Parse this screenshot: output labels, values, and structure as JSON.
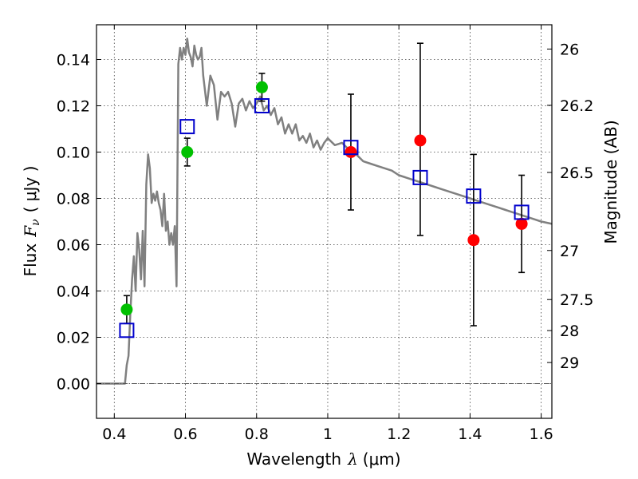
{
  "chart_data": {
    "type": "scatter",
    "xlabel": {
      "prefix": "Wavelength",
      "symbol": "λ",
      "unit": "(μm)"
    },
    "ylabel": {
      "prefix": "Flux",
      "symbol": "F",
      "subscript": "ν",
      "unit": "( μJy )"
    },
    "y2label": "Magnitude (AB)",
    "xlim": [
      0.35,
      1.63
    ],
    "ylim": [
      -0.015,
      0.155
    ],
    "grid": true,
    "x_ticks": [
      {
        "value": 0.4,
        "label": "0.4"
      },
      {
        "value": 0.6,
        "label": "0.6"
      },
      {
        "value": 0.8,
        "label": "0.8"
      },
      {
        "value": 1.0,
        "label": "1"
      },
      {
        "value": 1.2,
        "label": "1.2"
      },
      {
        "value": 1.4,
        "label": "1.4"
      },
      {
        "value": 1.6,
        "label": "1.6"
      }
    ],
    "y_ticks": [
      {
        "value": 0.0,
        "label": "0.00"
      },
      {
        "value": 0.02,
        "label": "0.02"
      },
      {
        "value": 0.04,
        "label": "0.04"
      },
      {
        "value": 0.06,
        "label": "0.06"
      },
      {
        "value": 0.08,
        "label": "0.08"
      },
      {
        "value": 0.1,
        "label": "0.10"
      },
      {
        "value": 0.12,
        "label": "0.12"
      },
      {
        "value": 0.14,
        "label": "0.14"
      }
    ],
    "y2_ticks": [
      {
        "flux": 0.1445,
        "label": "26"
      },
      {
        "flux": 0.1202,
        "label": "26.2"
      },
      {
        "flux": 0.0912,
        "label": "26.5"
      },
      {
        "flux": 0.0575,
        "label": "27"
      },
      {
        "flux": 0.0363,
        "label": "27.5"
      },
      {
        "flux": 0.0229,
        "label": "28"
      },
      {
        "flux": 0.0091,
        "label": "29"
      }
    ],
    "series": [
      {
        "kind": "line",
        "color": "#808080",
        "x": [
          0.35,
          0.42,
          0.43,
          0.435,
          0.44,
          0.445,
          0.45,
          0.455,
          0.46,
          0.465,
          0.47,
          0.475,
          0.48,
          0.485,
          0.49,
          0.495,
          0.5,
          0.505,
          0.51,
          0.515,
          0.52,
          0.525,
          0.53,
          0.535,
          0.54,
          0.545,
          0.55,
          0.555,
          0.56,
          0.565,
          0.57,
          0.575,
          0.58,
          0.585,
          0.59,
          0.595,
          0.6,
          0.605,
          0.61,
          0.615,
          0.62,
          0.625,
          0.63,
          0.635,
          0.64,
          0.645,
          0.65,
          0.66,
          0.67,
          0.68,
          0.69,
          0.7,
          0.71,
          0.72,
          0.73,
          0.74,
          0.75,
          0.76,
          0.77,
          0.78,
          0.79,
          0.8,
          0.81,
          0.82,
          0.83,
          0.84,
          0.85,
          0.86,
          0.87,
          0.88,
          0.89,
          0.9,
          0.91,
          0.92,
          0.93,
          0.94,
          0.95,
          0.96,
          0.97,
          0.98,
          0.99,
          1.0,
          1.02,
          1.04,
          1.06,
          1.08,
          1.1,
          1.12,
          1.14,
          1.16,
          1.18,
          1.2,
          1.22,
          1.24,
          1.26,
          1.28,
          1.3,
          1.32,
          1.34,
          1.36,
          1.38,
          1.4,
          1.42,
          1.44,
          1.46,
          1.48,
          1.5,
          1.52,
          1.54,
          1.56,
          1.58,
          1.6,
          1.63
        ],
        "y": [
          0.0,
          0.0,
          0.0,
          0.008,
          0.012,
          0.03,
          0.045,
          0.055,
          0.04,
          0.065,
          0.058,
          0.045,
          0.066,
          0.042,
          0.086,
          0.099,
          0.093,
          0.078,
          0.082,
          0.079,
          0.083,
          0.078,
          0.075,
          0.068,
          0.082,
          0.066,
          0.07,
          0.06,
          0.065,
          0.06,
          0.068,
          0.042,
          0.138,
          0.145,
          0.14,
          0.145,
          0.142,
          0.149,
          0.143,
          0.141,
          0.137,
          0.146,
          0.142,
          0.14,
          0.141,
          0.145,
          0.133,
          0.12,
          0.133,
          0.129,
          0.114,
          0.126,
          0.124,
          0.126,
          0.121,
          0.111,
          0.121,
          0.123,
          0.118,
          0.122,
          0.119,
          0.121,
          0.124,
          0.118,
          0.12,
          0.116,
          0.119,
          0.112,
          0.115,
          0.108,
          0.112,
          0.108,
          0.112,
          0.105,
          0.107,
          0.104,
          0.108,
          0.102,
          0.105,
          0.101,
          0.104,
          0.106,
          0.103,
          0.104,
          0.101,
          0.099,
          0.096,
          0.095,
          0.094,
          0.093,
          0.092,
          0.09,
          0.089,
          0.088,
          0.087,
          0.086,
          0.085,
          0.084,
          0.083,
          0.082,
          0.081,
          0.08,
          0.079,
          0.078,
          0.077,
          0.076,
          0.075,
          0.074,
          0.073,
          0.072,
          0.071,
          0.07,
          0.069
        ]
      },
      {
        "kind": "scatter",
        "marker": "circle",
        "color": "#00c000",
        "x": [
          0.435,
          0.605,
          0.815
        ],
        "y": [
          0.032,
          0.1,
          0.128
        ],
        "yerr_low": [
          0.026,
          0.094,
          0.122
        ],
        "yerr_high": [
          0.038,
          0.106,
          0.134
        ]
      },
      {
        "kind": "scatter",
        "marker": "circle",
        "color": "#ff0000",
        "x": [
          1.065,
          1.26,
          1.41,
          1.545
        ],
        "y": [
          0.1,
          0.105,
          0.062,
          0.069
        ],
        "yerr_low": [
          0.075,
          0.064,
          0.025,
          0.048
        ],
        "yerr_high": [
          0.125,
          0.147,
          0.099,
          0.09
        ]
      },
      {
        "kind": "scatter",
        "marker": "square",
        "color": "#0000cc",
        "x": [
          0.435,
          0.605,
          0.815,
          1.065,
          1.26,
          1.41,
          1.545
        ],
        "y": [
          0.023,
          0.111,
          0.12,
          0.102,
          0.089,
          0.081,
          0.074
        ]
      }
    ]
  }
}
